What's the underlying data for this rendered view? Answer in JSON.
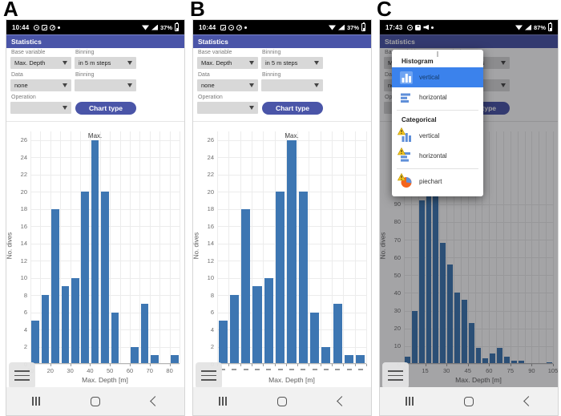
{
  "colors": {
    "bar_blue": "#3d76b2",
    "header_indigo": "#4a55a8",
    "popup_selected_blue": "#3b82ec",
    "warning_yellow": "#f6c71f",
    "pie_orange": "#f4641d",
    "pie_blue": "#5f8fd9"
  },
  "panels": [
    {
      "figure_label": "A",
      "status_bar": {
        "time": "10:44",
        "battery": "37%",
        "left_icons": [
          "whatsapp-icon",
          "gallery-icon",
          "browser-icon",
          "notification-dot-icon"
        ]
      },
      "app_header": {
        "title": "Statistics"
      },
      "form": {
        "base_variable_label": "Base variable",
        "base_variable_value": "Max. Depth",
        "binning1_label": "Binning",
        "binning1_value": "in 5 m steps",
        "data_label": "Data",
        "data_value": "none",
        "binning2_label": "Binning",
        "binning2_value": "",
        "operation_label": "Operation",
        "operation_value": "",
        "chart_type_button": "Chart type"
      },
      "dimmed": false
    },
    {
      "figure_label": "B",
      "status_bar": {
        "time": "10:44",
        "battery": "37%",
        "left_icons": [
          "gallery-icon",
          "whatsapp-icon",
          "browser-icon",
          "notification-dot-icon"
        ]
      },
      "app_header": {
        "title": "Statistics"
      },
      "form": {
        "base_variable_label": "Base variable",
        "base_variable_value": "Max. Depth",
        "binning1_label": "Binning",
        "binning1_value": "in 5 m steps",
        "data_label": "Data",
        "data_value": "none",
        "binning2_label": "Binning",
        "binning2_value": "",
        "operation_label": "Operation",
        "operation_value": "",
        "chart_type_button": "Chart type"
      },
      "dimmed": false
    },
    {
      "figure_label": "C",
      "status_bar": {
        "time": "17:43",
        "battery": "87%",
        "left_icons": [
          "whatsapp-icon",
          "youtube-icon",
          "volume-icon",
          "notification-dot-icon"
        ]
      },
      "app_header": {
        "title": "Statistics"
      },
      "form": {
        "base_variable_label": "Base variable",
        "base_variable_value": "Max. Depth",
        "binning1_label": "Binning",
        "binning1_value": "in 5 m steps",
        "data_label": "Data",
        "data_value": "none",
        "binning2_label": "Binning",
        "binning2_value": "",
        "operation_label": "Operation",
        "operation_value": "",
        "chart_type_button": "Chart type"
      },
      "dimmed": true
    }
  ],
  "popup": {
    "sections": [
      {
        "header": "Histogram",
        "items": [
          {
            "label": "vertical",
            "icon": "histogram-vertical-icon",
            "selected": true
          },
          {
            "label": "horizontal",
            "icon": "histogram-horizontal-icon"
          }
        ]
      },
      {
        "header": "Categorical",
        "items": [
          {
            "label": "vertical",
            "icon": "categorical-vertical-icon",
            "warning": true
          },
          {
            "label": "horizontal",
            "icon": "categorical-horizontal-icon",
            "warning": true
          },
          {
            "label": "piechart",
            "icon": "piechart-icon",
            "warning": true,
            "divider_before": true
          }
        ]
      }
    ]
  },
  "chart_data": [
    {
      "type": "bar",
      "panel": "A",
      "xlabel": "Max. Depth [m]",
      "ylabel": "No. dives",
      "bins": {
        "start": 10,
        "width": 5
      },
      "values": [
        5,
        8,
        18,
        9,
        10,
        20,
        26,
        20,
        6,
        0,
        2,
        7,
        1,
        0,
        1
      ],
      "xticks": [
        10,
        20,
        30,
        40,
        50,
        60,
        70,
        80
      ],
      "yticks": [
        0,
        2,
        4,
        6,
        8,
        10,
        12,
        14,
        16,
        18,
        20,
        22,
        24,
        26
      ],
      "ylim": [
        0,
        27
      ],
      "annotation": {
        "text": "Max.",
        "bar_index": 6
      },
      "grid": true,
      "bar_color": "#3d76b2"
    },
    {
      "type": "bar",
      "panel": "B",
      "categorical": true,
      "xlabel": "Max. Depth [m]",
      "ylabel": "No. dives",
      "values": [
        5,
        8,
        18,
        9,
        10,
        20,
        26,
        20,
        6,
        2,
        7,
        1,
        1
      ],
      "xtick_labels": [
        "-",
        "-",
        "-",
        "-",
        "-",
        "-",
        "-",
        "-",
        "-",
        "-",
        "-",
        "-",
        "-"
      ],
      "yticks": [
        0,
        2,
        4,
        6,
        8,
        10,
        12,
        14,
        16,
        18,
        20,
        22,
        24,
        26
      ],
      "ylim": [
        0,
        27
      ],
      "annotation": {
        "text": "Max.",
        "bar_index": 6
      },
      "grid": true,
      "bar_color": "#3d76b2"
    },
    {
      "type": "bar",
      "panel": "C",
      "xlabel": "Max. Depth [m]",
      "ylabel": "No. dives",
      "bins": {
        "start": 0,
        "width": 5
      },
      "values": [
        4,
        30,
        92,
        96,
        95,
        68,
        56,
        40,
        36,
        23,
        9,
        3,
        6,
        9,
        4,
        2,
        2,
        0,
        0,
        0,
        1
      ],
      "xticks": [
        0,
        15,
        30,
        45,
        60,
        75,
        90,
        105
      ],
      "yticks": [
        0,
        10,
        20,
        30,
        40,
        50,
        60,
        70,
        80,
        90
      ],
      "ylim": [
        0,
        131
      ],
      "grid": true,
      "bar_color": "#3d76b2"
    }
  ]
}
